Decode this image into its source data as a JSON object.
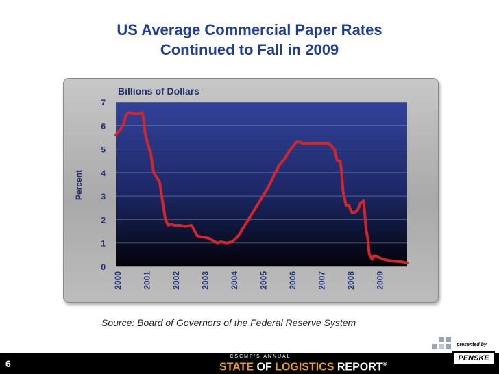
{
  "slide": {
    "title_line1": "US Average Commercial Paper Rates",
    "title_line2": "Continued to Fall in 2009",
    "source": "Source: Board of Governors of the Federal Reserve System",
    "page_number": "6",
    "footer_brand_small": "CSCMP'S ANNUAL",
    "footer_brand_state": "STATE",
    "footer_brand_of": " OF ",
    "footer_brand_logistics": "LOGISTICS",
    "footer_brand_report": " REPORT",
    "footer_brand_reg": "®",
    "presented_by": "presented by",
    "sponsor": "PENSKE"
  },
  "chart_data": {
    "type": "line",
    "title": "Billions of Dollars",
    "ylabel": "Percent",
    "xlabel": "",
    "ylim": [
      0,
      7
    ],
    "xlim": [
      2000,
      2010
    ],
    "yticks": [
      "0",
      "1",
      "2",
      "3",
      "4",
      "5",
      "6",
      "7"
    ],
    "xticks": [
      "2000",
      "2001",
      "2002",
      "2003",
      "2004",
      "2005",
      "2006",
      "2007",
      "2008",
      "2009"
    ],
    "grid": true,
    "line_color": "#d0272c",
    "series": [
      {
        "x": [
          2000.0,
          2000.1,
          2000.25,
          2000.35,
          2000.45,
          2000.6,
          2000.8,
          2000.9,
          2000.95,
          2001.0,
          2001.1,
          2001.2,
          2001.3,
          2001.4,
          2001.5,
          2001.6,
          2001.7,
          2001.8,
          2001.9,
          2002.0,
          2002.2,
          2002.4,
          2002.6,
          2002.8,
          2002.95,
          2003.0,
          2003.2,
          2003.4,
          2003.5,
          2003.6,
          2003.8,
          2004.0,
          2004.2,
          2004.4,
          2004.6,
          2004.8,
          2005.0,
          2005.2,
          2005.4,
          2005.6,
          2005.8,
          2006.0,
          2006.2,
          2006.3,
          2006.4,
          2006.5,
          2006.7,
          2006.9,
          2007.1,
          2007.3,
          2007.5,
          2007.6,
          2007.7,
          2007.75,
          2007.8,
          2007.9,
          2008.0,
          2008.1,
          2008.2,
          2008.3,
          2008.4,
          2008.5,
          2008.6,
          2008.65,
          2008.7,
          2008.8,
          2008.85,
          2008.9,
          2009.0,
          2009.2,
          2009.4,
          2009.6,
          2009.8,
          2010.0
        ],
        "values": [
          5.6,
          5.75,
          6.0,
          6.45,
          6.55,
          6.5,
          6.5,
          6.55,
          6.3,
          5.7,
          5.2,
          4.8,
          4.0,
          3.8,
          3.6,
          2.8,
          2.0,
          1.75,
          1.8,
          1.75,
          1.75,
          1.7,
          1.75,
          1.3,
          1.25,
          1.25,
          1.2,
          1.05,
          1.0,
          1.05,
          1.0,
          1.05,
          1.3,
          1.7,
          2.1,
          2.5,
          2.9,
          3.3,
          3.8,
          4.3,
          4.6,
          5.0,
          5.3,
          5.3,
          5.25,
          5.25,
          5.25,
          5.25,
          5.25,
          5.25,
          5.0,
          4.5,
          4.5,
          4.0,
          3.2,
          2.6,
          2.6,
          2.3,
          2.3,
          2.4,
          2.7,
          2.8,
          1.5,
          1.2,
          0.5,
          0.3,
          0.45,
          0.45,
          0.4,
          0.3,
          0.25,
          0.22,
          0.2,
          0.15
        ]
      }
    ]
  }
}
